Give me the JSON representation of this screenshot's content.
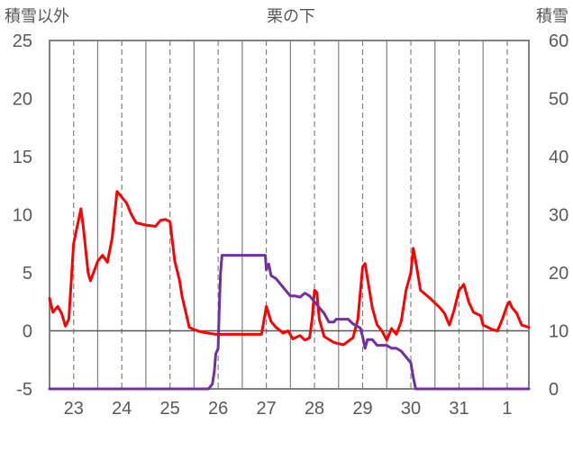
{
  "chart_data": {
    "type": "line",
    "title": "栗の下",
    "left_axis_label": "積雪以外",
    "right_axis_label": "積雪",
    "left_ylim": [
      -5,
      25
    ],
    "left_ticks": [
      "25",
      "20",
      "15",
      "10",
      "5",
      "0",
      "-5"
    ],
    "right_ylim": [
      0,
      60
    ],
    "right_ticks": [
      "60",
      "50",
      "40",
      "30",
      "20",
      "10",
      "0"
    ],
    "x_range": [
      22.5,
      32.45
    ],
    "day_labels": [
      {
        "x": 23,
        "label": "23"
      },
      {
        "x": 24,
        "label": "24"
      },
      {
        "x": 25,
        "label": "25"
      },
      {
        "x": 26,
        "label": "26"
      },
      {
        "x": 27,
        "label": "27"
      },
      {
        "x": 28,
        "label": "28"
      },
      {
        "x": 29,
        "label": "29"
      },
      {
        "x": 30,
        "label": "30"
      },
      {
        "x": 31,
        "label": "31"
      },
      {
        "x": 32,
        "label": "1"
      }
    ],
    "grid": "dashed vertical at day centers and solid vertical at day boundaries",
    "colors": {
      "temperature": "#ff0000",
      "snow": "#7030a0",
      "axis": "#808080",
      "grid": "#808080"
    },
    "series": [
      {
        "axis": "left",
        "color": "#ff0000",
        "points": [
          [
            22.5,
            2.8
          ],
          [
            22.57,
            1.6
          ],
          [
            22.67,
            2.1
          ],
          [
            22.75,
            1.5
          ],
          [
            22.83,
            0.4
          ],
          [
            22.9,
            1.0
          ],
          [
            23.0,
            7.5
          ],
          [
            23.1,
            9.5
          ],
          [
            23.15,
            10.5
          ],
          [
            23.2,
            9.0
          ],
          [
            23.3,
            5.0
          ],
          [
            23.35,
            4.3
          ],
          [
            23.5,
            6.0
          ],
          [
            23.6,
            6.5
          ],
          [
            23.7,
            5.9
          ],
          [
            23.8,
            8.0
          ],
          [
            23.9,
            12.0
          ],
          [
            24.0,
            11.5
          ],
          [
            24.1,
            11.0
          ],
          [
            24.2,
            10.0
          ],
          [
            24.3,
            9.3
          ],
          [
            24.5,
            9.1
          ],
          [
            24.7,
            9.0
          ],
          [
            24.8,
            9.5
          ],
          [
            24.9,
            9.6
          ],
          [
            25.0,
            9.4
          ],
          [
            25.1,
            6.0
          ],
          [
            25.2,
            4.3
          ],
          [
            25.25,
            3.0
          ],
          [
            25.4,
            0.3
          ],
          [
            25.5,
            0.1
          ],
          [
            25.65,
            -0.1
          ],
          [
            25.8,
            -0.2
          ],
          [
            25.95,
            -0.3
          ],
          [
            26.0,
            -0.3
          ],
          [
            26.5,
            -0.3
          ],
          [
            26.9,
            -0.3
          ],
          [
            27.0,
            2.1
          ],
          [
            27.1,
            0.8
          ],
          [
            27.2,
            0.3
          ],
          [
            27.35,
            -0.2
          ],
          [
            27.45,
            0.0
          ],
          [
            27.55,
            -0.7
          ],
          [
            27.7,
            -0.4
          ],
          [
            27.8,
            -0.8
          ],
          [
            27.9,
            -0.6
          ],
          [
            27.95,
            1.0
          ],
          [
            28.0,
            3.5
          ],
          [
            28.05,
            3.3
          ],
          [
            28.1,
            1.0
          ],
          [
            28.2,
            -0.5
          ],
          [
            28.4,
            -1.0
          ],
          [
            28.6,
            -1.2
          ],
          [
            28.8,
            -0.6
          ],
          [
            28.9,
            1.0
          ],
          [
            29.0,
            5.5
          ],
          [
            29.05,
            5.8
          ],
          [
            29.1,
            4.5
          ],
          [
            29.2,
            2.0
          ],
          [
            29.3,
            0.5
          ],
          [
            29.4,
            0.0
          ],
          [
            29.5,
            -0.8
          ],
          [
            29.6,
            0.2
          ],
          [
            29.7,
            -0.3
          ],
          [
            29.8,
            0.8
          ],
          [
            29.9,
            3.5
          ],
          [
            30.0,
            5.0
          ],
          [
            30.05,
            7.1
          ],
          [
            30.1,
            6.0
          ],
          [
            30.2,
            3.5
          ],
          [
            30.4,
            2.8
          ],
          [
            30.6,
            2.0
          ],
          [
            30.7,
            1.5
          ],
          [
            30.8,
            0.5
          ],
          [
            30.9,
            1.8
          ],
          [
            31.0,
            3.5
          ],
          [
            31.1,
            4.0
          ],
          [
            31.2,
            2.5
          ],
          [
            31.3,
            1.6
          ],
          [
            31.45,
            1.3
          ],
          [
            31.5,
            0.5
          ],
          [
            31.6,
            0.3
          ],
          [
            31.7,
            0.1
          ],
          [
            31.8,
            0.0
          ],
          [
            31.9,
            1.0
          ],
          [
            32.0,
            2.2
          ],
          [
            32.05,
            2.5
          ],
          [
            32.1,
            2.0
          ],
          [
            32.2,
            1.5
          ],
          [
            32.3,
            0.5
          ],
          [
            32.45,
            0.3
          ]
        ]
      },
      {
        "axis": "right",
        "color": "#7030a0",
        "points": [
          [
            22.5,
            0
          ],
          [
            25.8,
            0
          ],
          [
            25.88,
            0.8
          ],
          [
            25.92,
            3.0
          ],
          [
            25.95,
            6.0
          ],
          [
            26.0,
            7.0
          ],
          [
            26.02,
            13.0
          ],
          [
            26.05,
            20.0
          ],
          [
            26.08,
            23.0
          ],
          [
            26.5,
            23.0
          ],
          [
            26.98,
            23.0
          ],
          [
            27.0,
            20.5
          ],
          [
            27.05,
            21.5
          ],
          [
            27.1,
            19.5
          ],
          [
            27.2,
            19.0
          ],
          [
            27.3,
            18.0
          ],
          [
            27.4,
            17.0
          ],
          [
            27.5,
            16.0
          ],
          [
            27.6,
            16.0
          ],
          [
            27.7,
            15.8
          ],
          [
            27.8,
            16.5
          ],
          [
            27.9,
            16.0
          ],
          [
            28.0,
            15.0
          ],
          [
            28.1,
            14.0
          ],
          [
            28.2,
            13.0
          ],
          [
            28.3,
            11.5
          ],
          [
            28.4,
            11.5
          ],
          [
            28.45,
            12.0
          ],
          [
            28.55,
            12.0
          ],
          [
            28.7,
            12.0
          ],
          [
            28.8,
            11.2
          ],
          [
            28.95,
            10.5
          ],
          [
            29.0,
            9.0
          ],
          [
            29.05,
            7.0
          ],
          [
            29.1,
            8.5
          ],
          [
            29.2,
            8.5
          ],
          [
            29.3,
            7.5
          ],
          [
            29.5,
            7.5
          ],
          [
            29.6,
            7.0
          ],
          [
            29.7,
            7.0
          ],
          [
            29.8,
            6.5
          ],
          [
            29.9,
            5.5
          ],
          [
            30.0,
            4.5
          ],
          [
            30.05,
            2.0
          ],
          [
            30.1,
            0
          ],
          [
            32.45,
            0
          ]
        ]
      }
    ]
  }
}
